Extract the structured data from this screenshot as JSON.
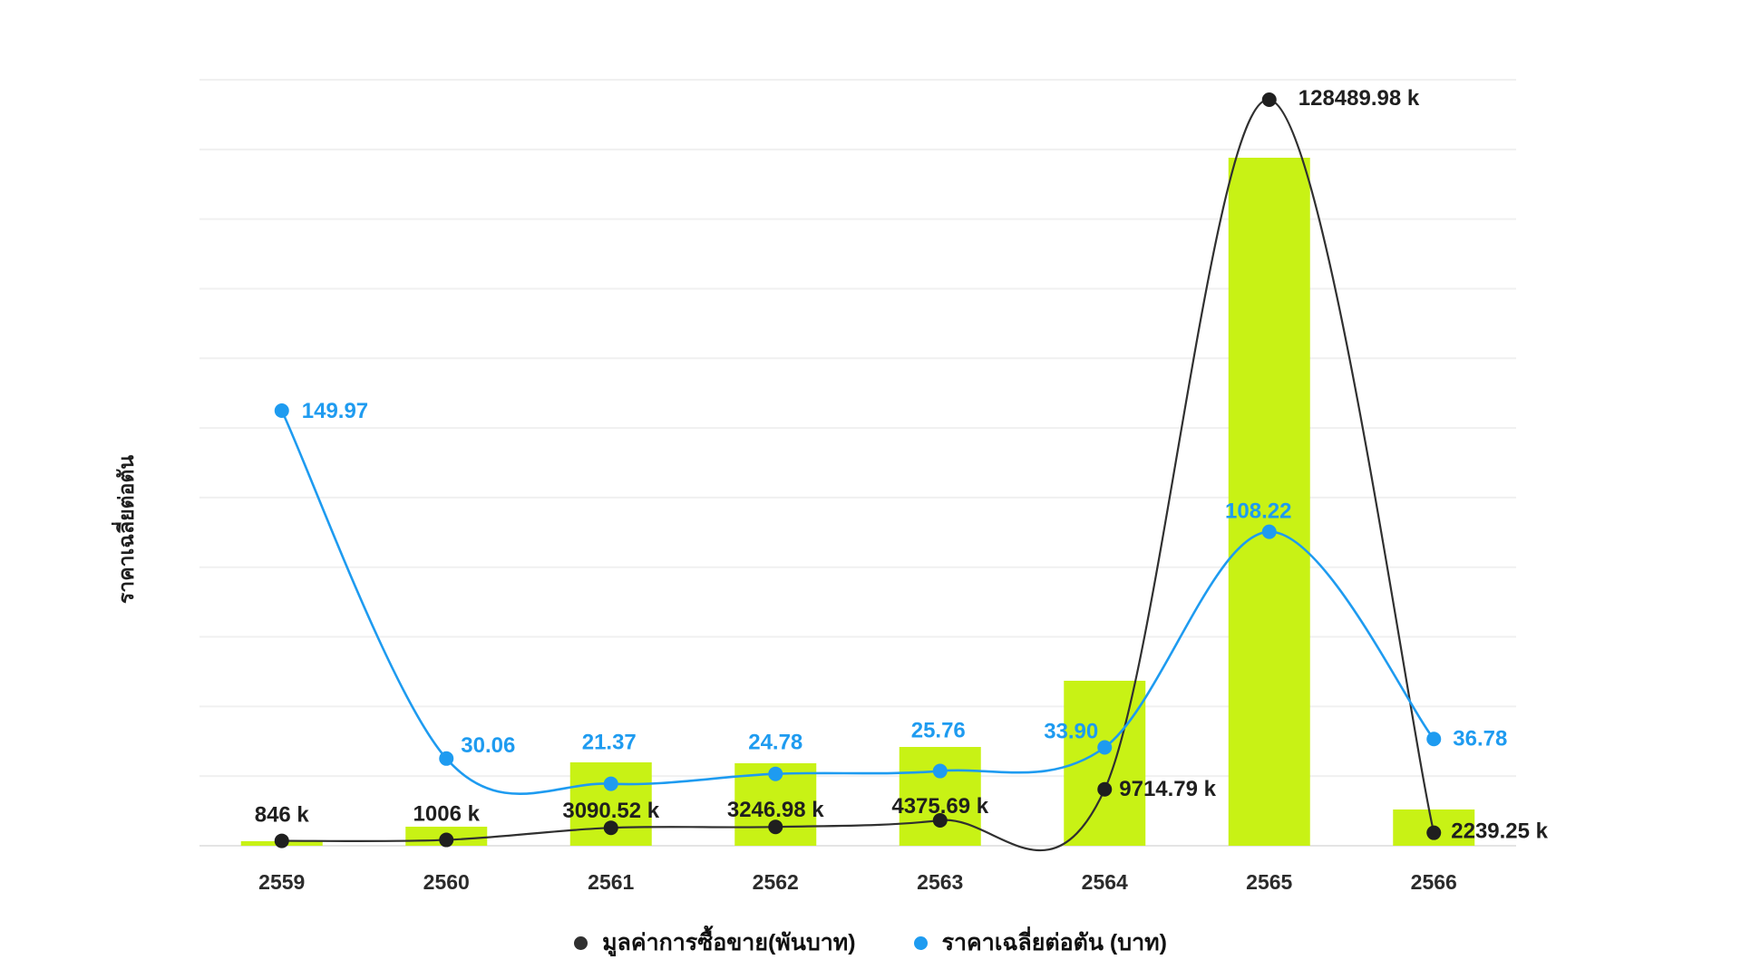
{
  "chart_data": {
    "type": "combo-bar-line",
    "categories": [
      "2559",
      "2560",
      "2561",
      "2562",
      "2563",
      "2564",
      "2565",
      "2566"
    ],
    "series": [
      {
        "name": "มูลค่าการซื้อขาย(พันบาท)",
        "type": "line",
        "color": "#303030",
        "dot_color": "#1f1f1f",
        "values": [
          846,
          1006,
          3090.52,
          3246.98,
          4375.69,
          9714.79,
          128489.98,
          2239.25
        ],
        "labels": [
          "846 k",
          "1006 k",
          "3090.52 k",
          "3246.98 k",
          "4375.69 k",
          "9714.79 k",
          "128489.98 k",
          "2239.25 k"
        ],
        "label_pos": [
          {
            "a": "middle",
            "dx": 0,
            "dy": -21
          },
          {
            "a": "middle",
            "dx": 0,
            "dy": -21
          },
          {
            "a": "middle",
            "dx": 0,
            "dy": -11
          },
          {
            "a": "middle",
            "dx": 0,
            "dy": -11
          },
          {
            "a": "middle",
            "dx": 0,
            "dy": -8
          },
          {
            "a": "start",
            "dx": 16,
            "dy": 7
          },
          {
            "a": "start",
            "dx": 32,
            "dy": 6
          },
          {
            "a": "start",
            "dx": 19,
            "dy": 6
          }
        ]
      },
      {
        "name": "ราคาเฉลี่ยต่อตัน (บาท)",
        "type": "line",
        "color": "#1e9bf0",
        "dot_color": "#1e9bf0",
        "values": [
          149.97,
          30.06,
          21.37,
          24.78,
          25.76,
          33.9,
          108.22,
          36.78
        ],
        "labels": [
          "149.97",
          "30.06",
          "21.37",
          "24.78",
          "25.76",
          "33.90",
          "108.22",
          "36.78"
        ],
        "label_pos": [
          {
            "a": "start",
            "dx": 22,
            "dy": 8
          },
          {
            "a": "start",
            "dx": 16,
            "dy": -7
          },
          {
            "a": "middle",
            "dx": -2,
            "dy": -38
          },
          {
            "a": "middle",
            "dx": 0,
            "dy": -27
          },
          {
            "a": "middle",
            "dx": -2,
            "dy": -37
          },
          {
            "a": "end",
            "dx": -7,
            "dy": -10
          },
          {
            "a": "middle",
            "dx": -12,
            "dy": -15
          },
          {
            "a": "start",
            "dx": 21,
            "dy": 7
          }
        ]
      }
    ],
    "bars": {
      "color": "#c8f215",
      "relative_heights": [
        0.0066,
        0.0277,
        0.1212,
        0.1199,
        0.1436,
        0.2398,
        1.0,
        0.0527
      ]
    },
    "ylabel": "ราคาเฉลี่ยต่อตัน",
    "xlabel": "",
    "grid": true,
    "legend_position": "bottom-center",
    "axis_text_color": "#2b2b2b",
    "grid_color": "#f0f0f0",
    "baseline_color": "#e4e4e4"
  }
}
